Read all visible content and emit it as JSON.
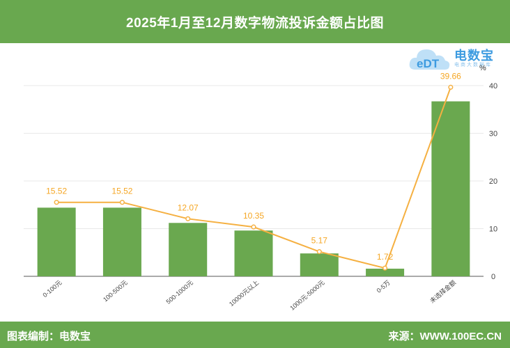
{
  "title": "2025年1月至12月数字物流投诉金额占比图",
  "footer": {
    "left": "图表编制：电数宝",
    "right": "来源：WWW.100EC.CN"
  },
  "logo": {
    "name": "电数宝",
    "sub": "电商大数据库",
    "mark_text": "eDT"
  },
  "colors": {
    "header": "#69a84f",
    "bar": "#6aa84f",
    "line": "#f5b041",
    "label": "#f5a623"
  },
  "chart_data": {
    "type": "bar",
    "categories": [
      "0-100元",
      "100-500元",
      "500-1000元",
      "10000元以上",
      "1000元-5000元",
      "0-5万",
      "未选择金额"
    ],
    "series": [
      {
        "type": "bar",
        "values": [
          14.4,
          14.4,
          11.2,
          9.6,
          4.8,
          1.6,
          36.7
        ]
      },
      {
        "type": "line",
        "values": [
          15.52,
          15.52,
          12.07,
          10.35,
          5.17,
          1.72,
          39.66
        ]
      }
    ],
    "data_labels": [
      "15.52",
      "15.52",
      "12.07",
      "10.35",
      "5.17",
      "1.72",
      "39.66"
    ],
    "ylabel": "%",
    "ylim": [
      0,
      40
    ],
    "yticks": [
      "0",
      "10",
      "20",
      "30",
      "40"
    ],
    "grid": true
  }
}
